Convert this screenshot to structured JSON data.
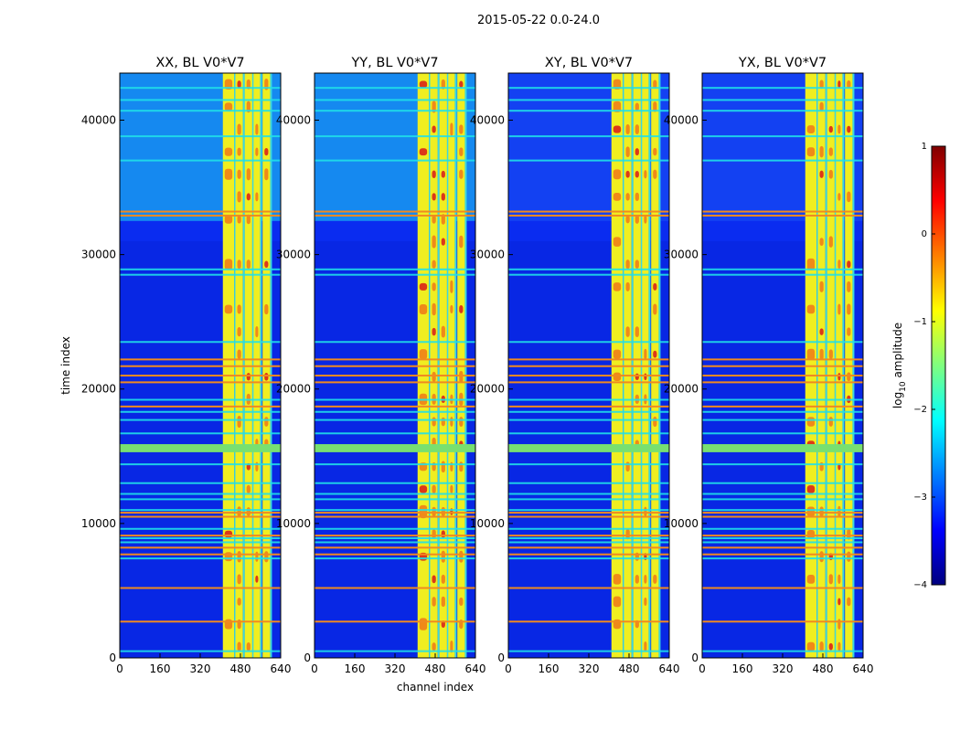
{
  "figure_title": "2015-05-22 0.0-24.0",
  "colors": {
    "background": "#ffffff",
    "text": "#000000",
    "base": "#0a2cf0",
    "band": "#f0ee20",
    "band_hot": "#f07818",
    "band_max": "#d81818",
    "flag_line": "#20e0e8",
    "flag_line_hot": "#f08a20",
    "flag_block": "#78e070",
    "cmap": [
      "#00007f",
      "#0000ff",
      "#007fff",
      "#00ffff",
      "#7fff7f",
      "#ffff00",
      "#ff7f00",
      "#ff0000",
      "#7f0000"
    ]
  },
  "chart_data": {
    "type": "heatmap",
    "xlabel": "channel index",
    "ylabel": "time index",
    "xlim": [
      0,
      640
    ],
    "ylim": [
      0,
      43500
    ],
    "xticks": [
      0,
      160,
      320,
      480,
      640
    ],
    "yticks": [
      0,
      10000,
      20000,
      30000,
      40000
    ],
    "panels": [
      {
        "title": "XX, BL V0*V7",
        "band_strength": 0.8,
        "upper_region_cyan": true
      },
      {
        "title": "YY, BL V0*V7",
        "band_strength": 1.0,
        "upper_region_cyan": true
      },
      {
        "title": "XY, BL V0*V7",
        "band_strength": 0.7,
        "upper_region_cyan": false
      },
      {
        "title": "YX, BL V0*V7",
        "band_strength": 0.75,
        "upper_region_cyan": false
      }
    ],
    "rfi_channels": [
      {
        "start": 410,
        "end": 455
      },
      {
        "start": 460,
        "end": 490
      },
      {
        "start": 497,
        "end": 527
      },
      {
        "start": 532,
        "end": 558
      },
      {
        "start": 568,
        "end": 598
      }
    ],
    "flagged_blocks": [
      {
        "start": 15300,
        "end": 15900
      }
    ],
    "flagged_rows_hot": [
      2700,
      5200,
      7700,
      8200,
      9100,
      10500,
      10800,
      18700,
      20500,
      21000,
      21700,
      22200,
      32900,
      33200
    ],
    "flagged_rows_cyan": [
      500,
      7400,
      8600,
      8900,
      9600,
      11000,
      11800,
      12200,
      13000,
      14400,
      16700,
      17700,
      18300,
      19200,
      23500,
      28500,
      28900,
      37000,
      38800,
      40700,
      41500,
      42400
    ],
    "colorbar": {
      "label_prefix": "log",
      "label_sub": "10",
      "label_suffix": " amplitude",
      "range": [
        -4,
        1
      ],
      "ticks": [
        "1",
        "0",
        "−1",
        "−2",
        "−3",
        "−4"
      ],
      "tick_values": [
        1,
        0,
        -1,
        -2,
        -3,
        -4
      ]
    }
  }
}
